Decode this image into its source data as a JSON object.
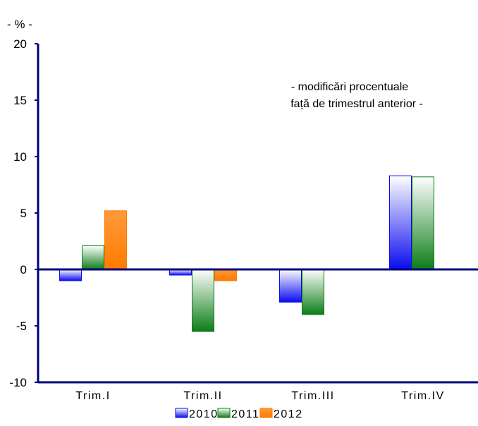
{
  "chart_data": {
    "type": "bar",
    "unit_label": "- % -",
    "annotation": [
      "- modificări procentuale",
      "față de trimestrul anterior -"
    ],
    "categories": [
      "Trim.I",
      "Trim.II",
      "Trim.III",
      "Trim.IV"
    ],
    "series": [
      {
        "name": "2010",
        "values": [
          -1.0,
          -0.5,
          -2.9,
          8.3
        ],
        "colors": {
          "dark": "#0a0af0",
          "light": "#ffffff"
        }
      },
      {
        "name": "2011",
        "values": [
          2.1,
          -5.5,
          -4.0,
          8.2
        ],
        "colors": {
          "dark": "#0c7d18",
          "light": "#ffffff"
        }
      },
      {
        "name": "2012",
        "values": [
          5.2,
          -1.0,
          null,
          null
        ],
        "colors": {
          "dark": "#ff7a00",
          "light": "#ff9a3a"
        }
      }
    ],
    "yticks": [
      20,
      15,
      10,
      5,
      0,
      -5,
      -10
    ],
    "ylim": [
      -10,
      20
    ],
    "legend_position": "bottom",
    "axis_color": "#00007a"
  }
}
